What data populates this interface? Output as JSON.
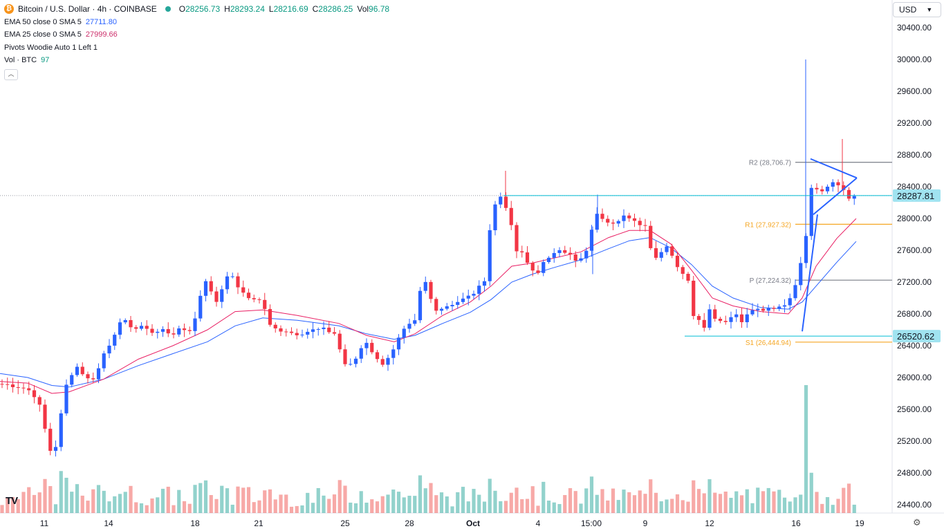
{
  "header": {
    "title": "Bitcoin / U.S. Dollar · 4h · COINBASE",
    "coin_icon": "bitcoin-icon",
    "o_label": "O",
    "o_value": "28256.73",
    "h_label": "H",
    "h_value": "28293.24",
    "l_label": "L",
    "l_value": "28216.69",
    "c_label": "C",
    "c_value": "28286.25",
    "vol_label": "Vol",
    "vol_value": "96.78"
  },
  "indicators": [
    {
      "label": "EMA 50 close 0 SMA 5",
      "value": "27711.80",
      "color": "#2962ff"
    },
    {
      "label": "EMA 25 close 0 SMA 5",
      "value": "27999.66",
      "color": "#cc2f6b"
    },
    {
      "label": "Pivots Woodie Auto 1 Left 1",
      "value": ""
    },
    {
      "label": "Vol · BTC",
      "value": "97",
      "color": "#26a69a"
    }
  ],
  "toolbar": {
    "currency": "USD",
    "logo": "TV",
    "settings_icon": "gear-icon"
  },
  "chart_data": {
    "type": "candlestick",
    "y_ticks": [
      "30400.00",
      "30000.00",
      "29600.00",
      "29200.00",
      "28800.00",
      "28400.00",
      "28000.00",
      "27600.00",
      "27200.00",
      "26800.00",
      "26400.00",
      "26000.00",
      "25600.00",
      "25200.00",
      "24800.00",
      "24400.00"
    ],
    "ylim": [
      24250,
      30650
    ],
    "x_ticks": [
      "11",
      "14",
      "18",
      "21",
      "25",
      "28",
      "Oct",
      "4",
      "15:00",
      "9",
      "12",
      "16",
      "19"
    ],
    "last_price_label": "28287.81",
    "support_label": "26520.62",
    "last_price": 28287.81,
    "support_price": 26520.62,
    "pivots": [
      {
        "label": "R2 (28,706.7)",
        "value": 28706.7,
        "color": "#787b86"
      },
      {
        "label": "R1 (27,927.32)",
        "value": 27927.32,
        "color": "#f5a623"
      },
      {
        "label": "P (27,224.32)",
        "value": 27224.32,
        "color": "#787b86"
      },
      {
        "label": "S1 (26,444.94)",
        "value": 26444.94,
        "color": "#f5a623"
      }
    ],
    "price_path": [
      [
        0,
        25920
      ],
      [
        20,
        25900
      ],
      [
        30,
        25880
      ],
      [
        40,
        25850
      ],
      [
        48,
        25800
      ],
      [
        55,
        25700
      ],
      [
        62,
        25500
      ],
      [
        70,
        25100
      ],
      [
        78,
        25050
      ],
      [
        85,
        25300
      ],
      [
        92,
        25800
      ],
      [
        100,
        26000
      ],
      [
        110,
        26150
      ],
      [
        120,
        26050
      ],
      [
        130,
        25950
      ],
      [
        140,
        26050
      ],
      [
        150,
        26300
      ],
      [
        160,
        26450
      ],
      [
        170,
        26650
      ],
      [
        180,
        26700
      ],
      [
        190,
        26650
      ],
      [
        200,
        26600
      ],
      [
        210,
        26650
      ],
      [
        222,
        26550
      ],
      [
        235,
        26600
      ],
      [
        248,
        26550
      ],
      [
        262,
        26600
      ],
      [
        275,
        26600
      ],
      [
        285,
        26800
      ],
      [
        293,
        27200
      ],
      [
        300,
        27250
      ],
      [
        310,
        26900
      ],
      [
        320,
        27100
      ],
      [
        328,
        27300
      ],
      [
        336,
        27250
      ],
      [
        344,
        27150
      ],
      [
        355,
        27000
      ],
      [
        367,
        27000
      ],
      [
        380,
        26950
      ],
      [
        390,
        26650
      ],
      [
        400,
        26600
      ],
      [
        412,
        26600
      ],
      [
        425,
        26550
      ],
      [
        440,
        26570
      ],
      [
        455,
        26600
      ],
      [
        470,
        26600
      ],
      [
        485,
        26550
      ],
      [
        493,
        26300
      ],
      [
        500,
        26150
      ],
      [
        510,
        26150
      ],
      [
        520,
        26350
      ],
      [
        530,
        26450
      ],
      [
        540,
        26300
      ],
      [
        550,
        26150
      ],
      [
        560,
        26250
      ],
      [
        570,
        26350
      ],
      [
        580,
        26550
      ],
      [
        592,
        26650
      ],
      [
        600,
        26700
      ],
      [
        608,
        27100
      ],
      [
        615,
        27200
      ],
      [
        622,
        27000
      ],
      [
        632,
        26850
      ],
      [
        645,
        26900
      ],
      [
        660,
        26950
      ],
      [
        675,
        27000
      ],
      [
        690,
        27100
      ],
      [
        700,
        27200
      ],
      [
        708,
        27850
      ],
      [
        715,
        28150
      ],
      [
        722,
        28300
      ],
      [
        730,
        28200
      ],
      [
        737,
        28000
      ],
      [
        745,
        27600
      ],
      [
        755,
        27550
      ],
      [
        765,
        27400
      ],
      [
        775,
        27300
      ],
      [
        787,
        27450
      ],
      [
        797,
        27500
      ],
      [
        805,
        27650
      ],
      [
        815,
        27600
      ],
      [
        823,
        27550
      ],
      [
        833,
        27450
      ],
      [
        842,
        27500
      ],
      [
        850,
        27600
      ],
      [
        857,
        27950
      ],
      [
        864,
        28050
      ],
      [
        874,
        28000
      ],
      [
        884,
        27950
      ],
      [
        895,
        28000
      ],
      [
        905,
        28050
      ],
      [
        912,
        27950
      ],
      [
        922,
        27950
      ],
      [
        935,
        27900
      ],
      [
        942,
        27600
      ],
      [
        950,
        27500
      ],
      [
        958,
        27600
      ],
      [
        966,
        27700
      ],
      [
        975,
        27450
      ],
      [
        985,
        27350
      ],
      [
        995,
        27200
      ],
      [
        1002,
        26800
      ],
      [
        1010,
        26750
      ],
      [
        1018,
        26650
      ],
      [
        1026,
        26850
      ],
      [
        1035,
        26750
      ],
      [
        1045,
        26700
      ],
      [
        1055,
        26750
      ],
      [
        1065,
        26800
      ],
      [
        1075,
        26700
      ],
      [
        1085,
        26850
      ],
      [
        1095,
        26850
      ],
      [
        1108,
        26850
      ],
      [
        1120,
        26850
      ],
      [
        1130,
        26900
      ],
      [
        1140,
        26950
      ],
      [
        1148,
        27150
      ],
      [
        1156,
        27300
      ],
      [
        1162,
        27700
      ],
      [
        1167,
        27850
      ],
      [
        1172,
        28400
      ],
      [
        1178,
        28450
      ],
      [
        1185,
        28300
      ],
      [
        1192,
        28400
      ],
      [
        1200,
        28450
      ],
      [
        1208,
        28450
      ],
      [
        1215,
        28400
      ],
      [
        1222,
        28350
      ],
      [
        1230,
        28200
      ],
      [
        1238,
        28287
      ]
    ],
    "ema25_path": [
      [
        0,
        25950
      ],
      [
        40,
        25930
      ],
      [
        75,
        25800
      ],
      [
        100,
        25820
      ],
      [
        150,
        25980
      ],
      [
        200,
        26230
      ],
      [
        250,
        26400
      ],
      [
        300,
        26600
      ],
      [
        340,
        26830
      ],
      [
        380,
        26850
      ],
      [
        430,
        26780
      ],
      [
        490,
        26680
      ],
      [
        530,
        26530
      ],
      [
        570,
        26450
      ],
      [
        600,
        26550
      ],
      [
        640,
        26780
      ],
      [
        680,
        26950
      ],
      [
        710,
        27150
      ],
      [
        740,
        27400
      ],
      [
        770,
        27440
      ],
      [
        800,
        27500
      ],
      [
        840,
        27580
      ],
      [
        880,
        27760
      ],
      [
        910,
        27850
      ],
      [
        940,
        27850
      ],
      [
        970,
        27680
      ],
      [
        1000,
        27350
      ],
      [
        1030,
        27000
      ],
      [
        1060,
        26900
      ],
      [
        1100,
        26830
      ],
      [
        1140,
        26800
      ],
      [
        1160,
        27000
      ],
      [
        1180,
        27400
      ],
      [
        1210,
        27750
      ],
      [
        1238,
        27999
      ]
    ],
    "ema50_path": [
      [
        0,
        26050
      ],
      [
        40,
        26000
      ],
      [
        75,
        25900
      ],
      [
        100,
        25880
      ],
      [
        150,
        25980
      ],
      [
        200,
        26150
      ],
      [
        250,
        26300
      ],
      [
        300,
        26450
      ],
      [
        340,
        26650
      ],
      [
        380,
        26750
      ],
      [
        430,
        26720
      ],
      [
        490,
        26650
      ],
      [
        530,
        26550
      ],
      [
        570,
        26480
      ],
      [
        600,
        26530
      ],
      [
        640,
        26680
      ],
      [
        680,
        26820
      ],
      [
        710,
        26980
      ],
      [
        740,
        27200
      ],
      [
        770,
        27300
      ],
      [
        800,
        27380
      ],
      [
        840,
        27480
      ],
      [
        880,
        27620
      ],
      [
        910,
        27720
      ],
      [
        940,
        27760
      ],
      [
        970,
        27630
      ],
      [
        1000,
        27420
      ],
      [
        1030,
        27150
      ],
      [
        1060,
        27000
      ],
      [
        1100,
        26880
      ],
      [
        1140,
        26860
      ],
      [
        1160,
        26950
      ],
      [
        1180,
        27150
      ],
      [
        1210,
        27450
      ],
      [
        1238,
        27711
      ]
    ]
  }
}
